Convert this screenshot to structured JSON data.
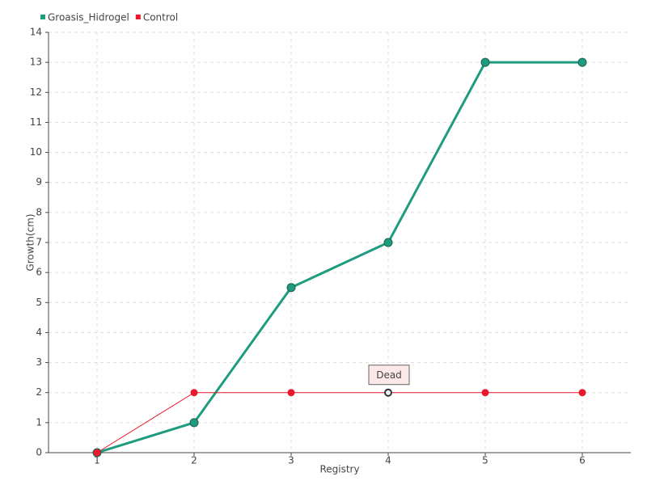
{
  "chart_data": {
    "type": "line",
    "x_label": "Registry",
    "y_label": "Growth(cm)",
    "x": [
      1,
      2,
      3,
      4,
      5,
      6
    ],
    "series": [
      {
        "name": "Groasis_Hidrogel",
        "color": "#1f9c7f",
        "values": [
          0,
          1,
          5.5,
          7,
          13,
          13
        ]
      },
      {
        "name": "Control",
        "color": "#e8192c",
        "values": [
          0,
          2,
          2,
          2,
          2,
          2
        ]
      }
    ],
    "xlim": [
      0.5,
      6.5
    ],
    "xticks": [
      1,
      2,
      3,
      4,
      5,
      6
    ],
    "ylim": [
      0,
      14
    ],
    "yticks": [
      0,
      1,
      2,
      3,
      4,
      5,
      6,
      7,
      8,
      9,
      10,
      11,
      12,
      13,
      14
    ],
    "grid": true,
    "legend": "top-left",
    "annotations": [
      {
        "text": "Dead",
        "x": 4,
        "y": 2
      }
    ]
  }
}
